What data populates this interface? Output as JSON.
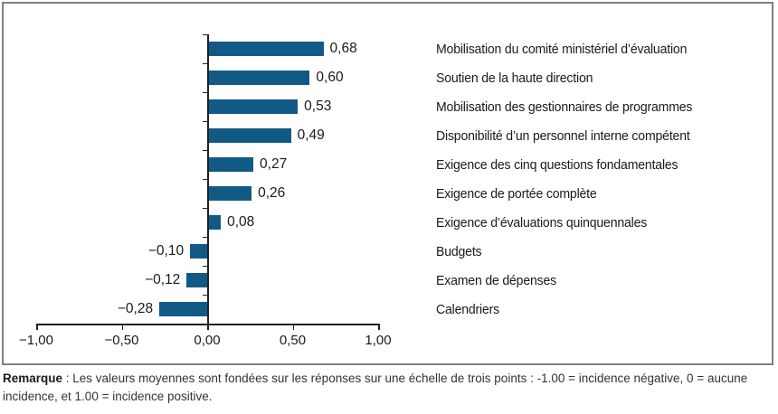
{
  "chart_data": {
    "type": "bar",
    "orientation": "horizontal",
    "title": "",
    "xlabel": "",
    "ylabel": "",
    "xlim": [
      -1.0,
      1.0
    ],
    "grid": false,
    "legend": false,
    "bar_color": "#125a86",
    "axis_color": "#222222",
    "border_color": "#7f7f7f",
    "categories": [
      "Mobilisation du comité ministériel d’évaluation",
      "Soutien de la haute direction",
      "Mobilisation des gestionnaires de programmes",
      "Disponibilité d’un personnel interne compétent",
      "Exigence des cinq questions fondamentales",
      "Exigence de portée complète",
      "Exigence d’évaluations quinquennales",
      "Budgets",
      "Examen de dépenses",
      "Calendriers"
    ],
    "values": [
      0.68,
      0.6,
      0.53,
      0.49,
      0.27,
      0.26,
      0.08,
      -0.1,
      -0.12,
      -0.28
    ],
    "value_labels": [
      "0,68",
      "0,60",
      "0,53",
      "0,49",
      "0,27",
      "0,26",
      "0,08",
      "−0,10",
      "−0,12",
      "−0,28"
    ],
    "x_ticks": [
      {
        "value": -1.0,
        "label": "−1,00"
      },
      {
        "value": -0.5,
        "label": "−0,50"
      },
      {
        "value": 0.0,
        "label": "0,00"
      },
      {
        "value": 0.5,
        "label": "0,50"
      },
      {
        "value": 1.0,
        "label": "1,00"
      }
    ]
  },
  "note": {
    "label": "Remarque",
    "text": " : Les valeurs moyennes sont fondées sur les réponses sur une échelle de trois points : -1.00 = incidence négative, 0 = aucune incidence, et 1.00 = incidence positive."
  }
}
